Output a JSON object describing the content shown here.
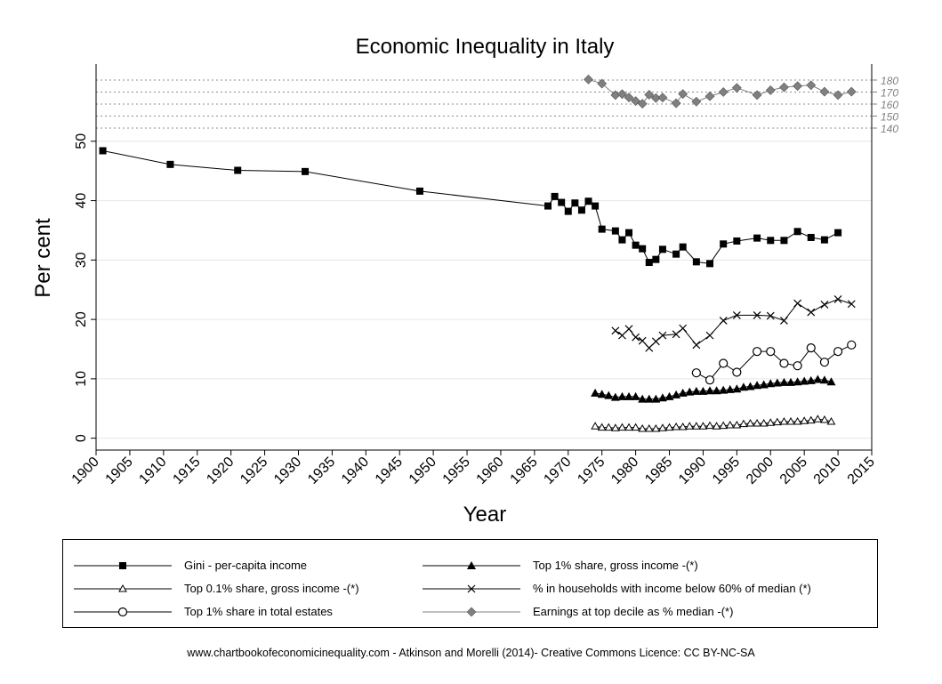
{
  "chart_data": {
    "type": "line",
    "title": "Economic Inequality in Italy",
    "xlabel": "Year",
    "ylabel": "Per cent",
    "xlim": [
      1900,
      2015
    ],
    "ylim": [
      -2,
      63
    ],
    "x_ticks": [
      "1900",
      "1905",
      "1910",
      "1915",
      "1920",
      "1925",
      "1930",
      "1935",
      "1940",
      "1945",
      "1950",
      "1955",
      "1960",
      "1965",
      "1970",
      "1975",
      "1980",
      "1985",
      "1990",
      "1995",
      "2000",
      "2005",
      "2010",
      "2015"
    ],
    "y_ticks": [
      "0",
      "10",
      "20",
      "30",
      "40",
      "50"
    ],
    "right_axis": {
      "ticks": [
        "140",
        "150",
        "160",
        "170",
        "180"
      ],
      "range": [
        140,
        180
      ],
      "series_index": 5
    },
    "grid": true,
    "legend_position": "bottom",
    "series": [
      {
        "name": "Gini - per-capita income",
        "marker": "square-filled",
        "color": "#000000",
        "x": [
          1901,
          1911,
          1921,
          1931,
          1948,
          1967,
          1968,
          1969,
          1970,
          1971,
          1972,
          1973,
          1974,
          1975,
          1977,
          1978,
          1979,
          1980,
          1981,
          1982,
          1983,
          1984,
          1986,
          1987,
          1989,
          1991,
          1993,
          1995,
          1998,
          2000,
          2002,
          2004,
          2006,
          2008,
          2010
        ],
        "y": [
          48.4,
          46.1,
          45.1,
          44.9,
          41.6,
          39.1,
          40.7,
          39.7,
          38.2,
          39.6,
          38.4,
          39.9,
          39.1,
          35.2,
          34.9,
          33.4,
          34.6,
          32.5,
          31.9,
          29.6,
          30.1,
          31.8,
          31.0,
          32.2,
          29.7,
          29.4,
          32.7,
          33.2,
          33.7,
          33.3,
          33.3,
          34.8,
          33.8,
          33.4,
          34.6
        ]
      },
      {
        "name": "Top 1% share, gross income -(*)",
        "marker": "triangle-filled",
        "color": "#000000",
        "x": [
          1974,
          1975,
          1976,
          1977,
          1978,
          1979,
          1980,
          1981,
          1982,
          1983,
          1984,
          1985,
          1986,
          1987,
          1988,
          1989,
          1990,
          1991,
          1992,
          1993,
          1994,
          1995,
          1996,
          1997,
          1998,
          1999,
          2000,
          2001,
          2002,
          2003,
          2004,
          2005,
          2006,
          2007,
          2008,
          2009
        ],
        "y": [
          7.6,
          7.4,
          7.2,
          6.9,
          7.0,
          7.0,
          7.0,
          6.6,
          6.6,
          6.6,
          6.8,
          7.0,
          7.3,
          7.6,
          7.8,
          7.9,
          7.9,
          8.0,
          8.0,
          8.1,
          8.2,
          8.3,
          8.6,
          8.7,
          8.9,
          9.0,
          9.2,
          9.3,
          9.4,
          9.4,
          9.5,
          9.6,
          9.7,
          9.9,
          9.8,
          9.5
        ]
      },
      {
        "name": "Top 0.1% share, gross income -(*)",
        "marker": "triangle-open",
        "color": "#000000",
        "x": [
          1974,
          1975,
          1976,
          1977,
          1978,
          1979,
          1980,
          1981,
          1982,
          1983,
          1984,
          1985,
          1986,
          1987,
          1988,
          1989,
          1990,
          1991,
          1992,
          1993,
          1994,
          1995,
          1996,
          1997,
          1998,
          1999,
          2000,
          2001,
          2002,
          2003,
          2004,
          2005,
          2006,
          2007,
          2008,
          2009
        ],
        "y": [
          2.0,
          1.8,
          1.8,
          1.7,
          1.8,
          1.8,
          1.8,
          1.6,
          1.6,
          1.6,
          1.7,
          1.8,
          1.9,
          1.9,
          2.0,
          2.0,
          2.0,
          2.1,
          2.0,
          2.1,
          2.2,
          2.2,
          2.4,
          2.5,
          2.5,
          2.5,
          2.6,
          2.7,
          2.8,
          2.8,
          2.8,
          2.9,
          3.0,
          3.2,
          3.1,
          2.8
        ]
      },
      {
        "name": "% in households with income below 60% of median (*)",
        "marker": "x",
        "color": "#000000",
        "x": [
          1977,
          1978,
          1979,
          1980,
          1981,
          1982,
          1983,
          1984,
          1986,
          1987,
          1989,
          1991,
          1993,
          1995,
          1998,
          2000,
          2002,
          2004,
          2006,
          2008,
          2010,
          2012
        ],
        "y": [
          18.1,
          17.3,
          18.4,
          17.0,
          16.4,
          15.2,
          16.3,
          17.3,
          17.5,
          18.5,
          15.7,
          17.3,
          19.8,
          20.7,
          20.7,
          20.6,
          19.8,
          22.7,
          21.2,
          22.5,
          23.4,
          22.6
        ]
      },
      {
        "name": "Top 1% share in total estates",
        "marker": "circle-open",
        "color": "#000000",
        "x": [
          1989,
          1991,
          1993,
          1995,
          1998,
          2000,
          2002,
          2004,
          2006,
          2008,
          2010,
          2012
        ],
        "y": [
          11.0,
          9.8,
          12.6,
          11.1,
          14.6,
          14.6,
          12.6,
          12.2,
          15.2,
          12.8,
          14.6,
          15.7
        ]
      },
      {
        "name": "Earnings at top decile as % median -(*)",
        "marker": "diamond",
        "color": "#808080",
        "axis": "right",
        "x": [
          1973,
          1975,
          1977,
          1978,
          1979,
          1980,
          1981,
          1982,
          1983,
          1984,
          1986,
          1987,
          1989,
          1991,
          1993,
          1995,
          1998,
          2000,
          2002,
          2004,
          2006,
          2008,
          2010,
          2012
        ],
        "y": [
          180.5,
          177.0,
          167.5,
          168.3,
          165.5,
          162.5,
          160.3,
          167.8,
          165.0,
          165.4,
          160.7,
          168.4,
          162.0,
          166.5,
          170.0,
          173.5,
          167.5,
          171.5,
          174.0,
          175.0,
          175.7,
          170.3,
          167.5,
          170.3
        ]
      }
    ]
  },
  "footer": {
    "credit": "www.chartbookofeconomicinequality.com - Atkinson and Morelli (2014)- Creative Commons Licence: CC BY-NC-SA"
  }
}
